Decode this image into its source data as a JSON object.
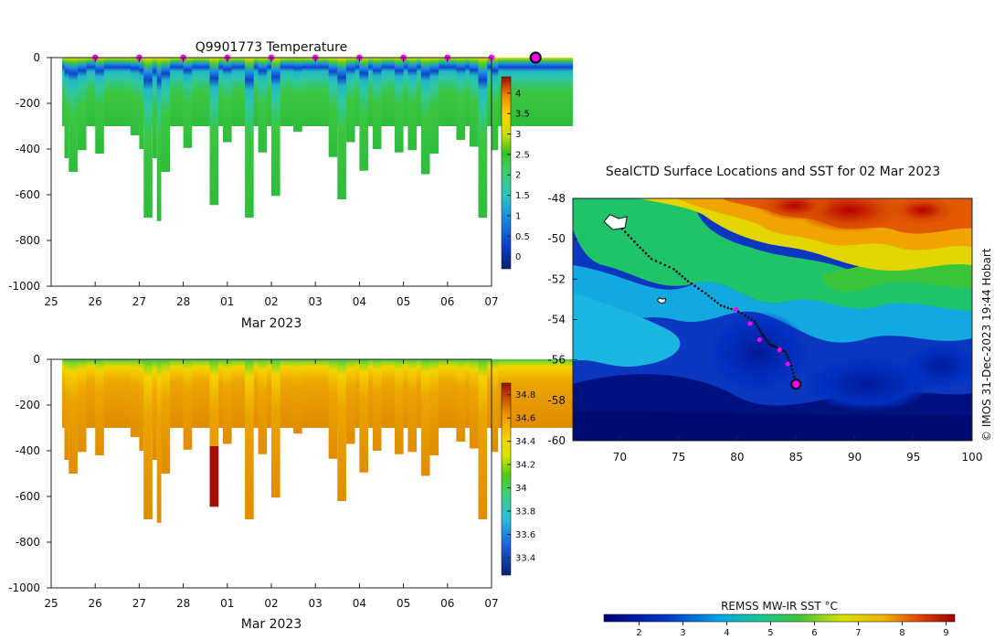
{
  "chart_data": [
    {
      "type": "heatmap",
      "title": "Q9901773  Temperature",
      "xlabel": "Mar 2023",
      "ylabel": "",
      "x_tick_labels": [
        "25",
        "26",
        "27",
        "28",
        "01",
        "02",
        "03",
        "04",
        "05",
        "06",
        "07"
      ],
      "y_tick_labels": [
        "0",
        "-200",
        "-400",
        "-600",
        "-800",
        "-1000"
      ],
      "ylim": [
        -1000,
        0
      ],
      "colorbar": {
        "range": [
          -0.3,
          4.4
        ],
        "ticks": [
          "4",
          "3.5",
          "3",
          "2.5",
          "2",
          "1.5",
          "1",
          "0.5",
          "0"
        ],
        "colormap": "parula-like"
      },
      "surfacing_markers_x": [
        26,
        27,
        28,
        29,
        30,
        31,
        32,
        33,
        34,
        35
      ],
      "latest_marker_x": 36,
      "dive_max_depth_m": [
        {
          "x": 25.3,
          "depth": -440
        },
        {
          "x": 25.4,
          "depth": -500
        },
        {
          "x": 25.6,
          "depth": -405
        },
        {
          "x": 25.9,
          "depth": -300
        },
        {
          "x": 26.0,
          "depth": -420
        },
        {
          "x": 26.8,
          "depth": -340
        },
        {
          "x": 27.0,
          "depth": -400
        },
        {
          "x": 27.1,
          "depth": -700
        },
        {
          "x": 27.3,
          "depth": -440
        },
        {
          "x": 27.4,
          "depth": -715
        },
        {
          "x": 27.5,
          "depth": -500
        },
        {
          "x": 28.0,
          "depth": -395
        },
        {
          "x": 28.6,
          "depth": -645
        },
        {
          "x": 28.9,
          "depth": -370
        },
        {
          "x": 29.4,
          "depth": -700
        },
        {
          "x": 29.7,
          "depth": -415
        },
        {
          "x": 30.0,
          "depth": -605
        },
        {
          "x": 30.5,
          "depth": -325
        },
        {
          "x": 31.3,
          "depth": -435
        },
        {
          "x": 31.5,
          "depth": -620
        },
        {
          "x": 31.7,
          "depth": -370
        },
        {
          "x": 32.0,
          "depth": -495
        },
        {
          "x": 32.3,
          "depth": -400
        },
        {
          "x": 32.8,
          "depth": -415
        },
        {
          "x": 33.1,
          "depth": -405
        },
        {
          "x": 33.4,
          "depth": -510
        },
        {
          "x": 33.6,
          "depth": -420
        },
        {
          "x": 34.2,
          "depth": -360
        },
        {
          "x": 34.5,
          "depth": -390
        },
        {
          "x": 34.7,
          "depth": -700
        },
        {
          "x": 35.0,
          "depth": -405
        }
      ]
    },
    {
      "type": "heatmap",
      "title": "",
      "xlabel": "Mar 2023",
      "ylabel": "",
      "x_tick_labels": [
        "25",
        "26",
        "27",
        "28",
        "01",
        "02",
        "03",
        "04",
        "05",
        "06",
        "07"
      ],
      "y_tick_labels": [
        "0",
        "-200",
        "-400",
        "-600",
        "-800",
        "-1000"
      ],
      "ylim": [
        -1000,
        0
      ],
      "colorbar": {
        "range": [
          33.25,
          34.9
        ],
        "ticks": [
          "34.8",
          "34.6",
          "34.4",
          "34.2",
          "34",
          "33.8",
          "33.6",
          "33.4"
        ],
        "colormap": "parula-like"
      }
    },
    {
      "type": "heatmap",
      "title": "SealCTD Surface Locations and SST for 02 Mar 2023",
      "xlabel": "",
      "ylabel": "",
      "xlim": [
        66,
        100
      ],
      "ylim": [
        -60,
        -48
      ],
      "x_tick_labels": [
        "70",
        "75",
        "80",
        "85",
        "90",
        "95",
        "100"
      ],
      "y_tick_labels": [
        "-48",
        "-50",
        "-52",
        "-54",
        "-56",
        "-58",
        "-60"
      ],
      "colorbar": {
        "label": "REMSS MW-IR SST °C",
        "range": [
          1.2,
          9.2
        ],
        "ticks": [
          "2",
          "3",
          "4",
          "5",
          "6",
          "7",
          "8",
          "9"
        ],
        "colormap": "jet-like"
      },
      "track": [
        {
          "lon": 69.0,
          "lat": -49.1
        },
        {
          "lon": 70.2,
          "lat": -49.5
        },
        {
          "lon": 71.5,
          "lat": -50.3
        },
        {
          "lon": 72.7,
          "lat": -51.0
        },
        {
          "lon": 74.6,
          "lat": -51.5
        },
        {
          "lon": 75.8,
          "lat": -52.1
        },
        {
          "lon": 77.3,
          "lat": -52.7
        },
        {
          "lon": 78.6,
          "lat": -53.3
        },
        {
          "lon": 80.1,
          "lat": -53.6
        },
        {
          "lon": 81.5,
          "lat": -54.1
        },
        {
          "lon": 82.1,
          "lat": -54.7
        },
        {
          "lon": 82.7,
          "lat": -55.2
        },
        {
          "lon": 83.4,
          "lat": -55.4
        },
        {
          "lon": 84.1,
          "lat": -55.6
        },
        {
          "lon": 84.6,
          "lat": -56.3
        },
        {
          "lon": 85.0,
          "lat": -57.2
        }
      ],
      "recent_positions": [
        {
          "lon": 79.9,
          "lat": -53.5
        },
        {
          "lon": 81.1,
          "lat": -54.2
        },
        {
          "lon": 81.9,
          "lat": -55.0
        },
        {
          "lon": 83.6,
          "lat": -55.5
        },
        {
          "lon": 84.3,
          "lat": -56.2
        }
      ],
      "current_position": {
        "lon": 85.0,
        "lat": -57.2
      },
      "islands": [
        {
          "lon": 69.5,
          "lat": -49.3
        },
        {
          "lon": 73.5,
          "lat": -53.1
        }
      ]
    }
  ],
  "credit": "© IMOS 31-Dec-2023 19:44 Hobart",
  "colors": {
    "surfacing_marker": "#ff00ff",
    "track": "#111111",
    "axis": "#222222"
  }
}
